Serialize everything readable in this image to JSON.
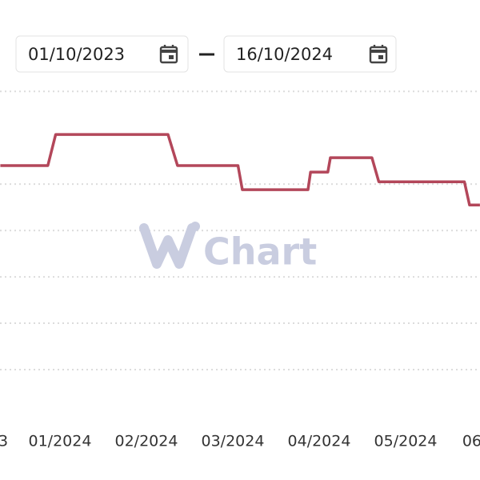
{
  "date_range": {
    "start": "01/10/2023",
    "end": "16/10/2024"
  },
  "chart_data": {
    "type": "step-line",
    "watermark": "Chart",
    "x": [
      0.31,
      0.86,
      0.95,
      2.25,
      2.36,
      3.06,
      3.11,
      3.87,
      3.9,
      4.1,
      4.13,
      4.61,
      4.69,
      5.68,
      5.74,
      5.86
    ],
    "values": [
      5.4,
      5.4,
      6.07,
      6.07,
      5.4,
      5.4,
      4.88,
      4.88,
      5.26,
      5.26,
      5.57,
      5.57,
      5.05,
      5.05,
      4.55,
      4.55
    ],
    "color": "#b3475a",
    "xlim": [
      0.306,
      5.861
    ],
    "xticks": [
      {
        "value": 0,
        "label": "3"
      },
      {
        "value": 1,
        "label": "01/2024"
      },
      {
        "value": 2,
        "label": "02/2024"
      },
      {
        "value": 3,
        "label": "03/2024"
      },
      {
        "value": 4,
        "label": "04/2024"
      },
      {
        "value": 5,
        "label": "05/2024"
      },
      {
        "value": 6,
        "label": "06"
      }
    ],
    "ylim": [
      -1.38,
      8.97
    ],
    "ygrid": [
      1,
      2,
      3,
      4,
      5,
      7
    ],
    "grid": true
  }
}
